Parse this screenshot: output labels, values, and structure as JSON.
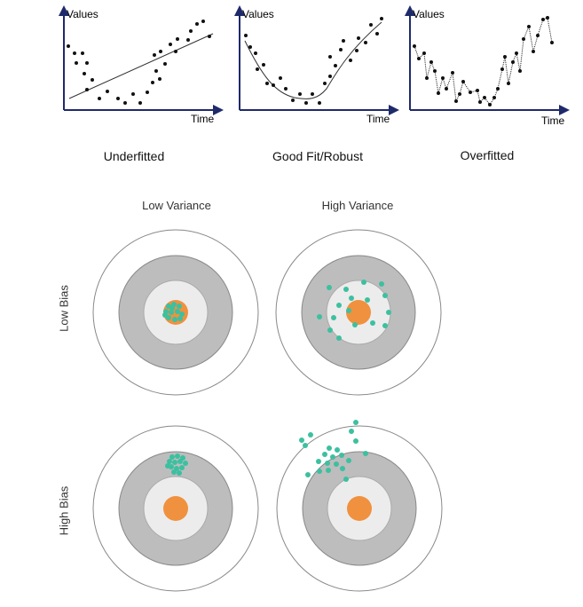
{
  "fit_panels": [
    {
      "ylabel": "Values",
      "xlabel": "Time",
      "caption": "Underfitted"
    },
    {
      "ylabel": "Values",
      "xlabel": "Time",
      "caption": "Good Fit/Robust"
    },
    {
      "ylabel": "Values",
      "xlabel": "Time",
      "caption": "Overfitted"
    }
  ],
  "bias_variance": {
    "columns": [
      "Low Variance",
      "High Variance"
    ],
    "rows": [
      "Low Bias",
      "High Bias"
    ]
  },
  "colors": {
    "axis": "#1f2a6b",
    "point": "#111111",
    "ring_dark": "#bdbdbd",
    "ring_light": "#ececec",
    "bullseye": "#f0913f",
    "shot": "#3cc0a0"
  }
}
